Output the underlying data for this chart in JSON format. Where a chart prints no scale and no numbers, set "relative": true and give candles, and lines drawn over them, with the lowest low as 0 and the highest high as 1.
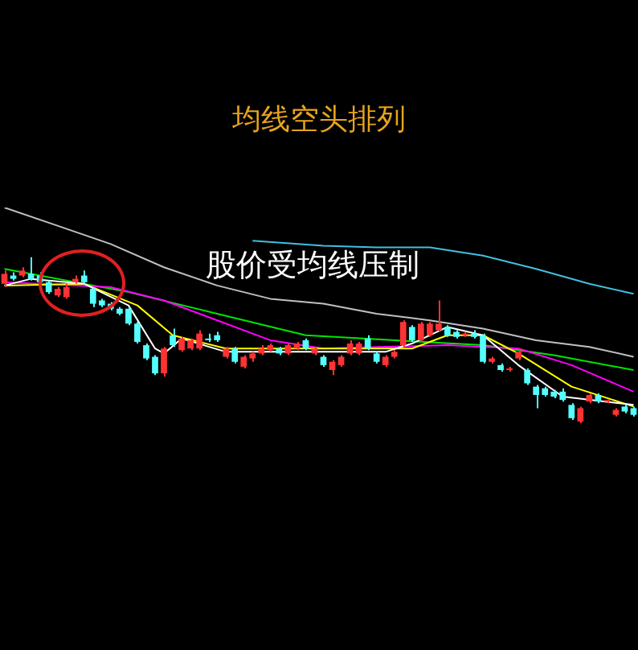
{
  "chart_data": {
    "type": "candlestick",
    "relative": true,
    "title": "均线空头排列",
    "annotations": [
      "股价受均线压制"
    ],
    "categories": [
      null,
      null,
      null,
      null,
      null,
      null,
      null,
      null,
      null,
      null,
      null,
      null,
      null,
      null,
      null,
      null,
      null,
      null,
      null,
      null,
      null,
      null,
      null,
      null,
      null,
      null,
      null,
      null,
      null,
      null,
      null,
      null,
      null,
      null,
      null,
      null,
      null,
      null,
      null,
      null,
      null,
      null,
      null,
      null,
      null,
      null,
      null,
      null,
      null,
      null,
      null,
      null,
      null,
      null,
      null,
      null,
      null,
      null,
      null,
      null,
      null,
      null,
      null,
      null,
      null,
      null,
      null,
      null,
      null,
      null,
      null,
      null
    ],
    "ohlc": [
      [
        0.84,
        0.92,
        0.82,
        0.9
      ],
      [
        0.89,
        0.91,
        0.86,
        0.87
      ],
      [
        0.89,
        0.94,
        0.88,
        0.92
      ],
      [
        0.9,
        1.0,
        0.86,
        0.87
      ],
      [
        0.89,
        0.91,
        0.84,
        0.85
      ],
      [
        0.85,
        0.86,
        0.78,
        0.79
      ],
      [
        0.77,
        0.82,
        0.76,
        0.81
      ],
      [
        0.76,
        0.84,
        0.75,
        0.82
      ],
      [
        0.85,
        0.89,
        0.84,
        0.87
      ],
      [
        0.89,
        0.92,
        0.84,
        0.85
      ],
      [
        0.81,
        0.82,
        0.7,
        0.72
      ],
      [
        0.74,
        0.75,
        0.7,
        0.71
      ],
      [
        0.72,
        0.73,
        0.68,
        0.69
      ],
      [
        0.69,
        0.7,
        0.65,
        0.66
      ],
      [
        0.69,
        0.7,
        0.59,
        0.6
      ],
      [
        0.6,
        0.61,
        0.48,
        0.49
      ],
      [
        0.47,
        0.48,
        0.38,
        0.39
      ],
      [
        0.4,
        0.41,
        0.29,
        0.3
      ],
      [
        0.3,
        0.46,
        0.28,
        0.45
      ],
      [
        0.53,
        0.57,
        0.46,
        0.47
      ],
      [
        0.44,
        0.52,
        0.43,
        0.51
      ],
      [
        0.45,
        0.51,
        0.44,
        0.5
      ],
      [
        0.45,
        0.56,
        0.44,
        0.54
      ],
      [
        0.51,
        0.54,
        0.49,
        0.5
      ],
      [
        0.53,
        0.55,
        0.49,
        0.5
      ],
      [
        0.4,
        0.46,
        0.39,
        0.45
      ],
      [
        0.45,
        0.46,
        0.36,
        0.37
      ],
      [
        0.34,
        0.41,
        0.33,
        0.4
      ],
      [
        0.39,
        0.43,
        0.37,
        0.42
      ],
      [
        0.42,
        0.47,
        0.41,
        0.45
      ],
      [
        0.44,
        0.48,
        0.43,
        0.47
      ],
      [
        0.45,
        0.46,
        0.41,
        0.42
      ],
      [
        0.42,
        0.48,
        0.41,
        0.47
      ],
      [
        0.45,
        0.49,
        0.44,
        0.48
      ],
      [
        0.5,
        0.51,
        0.44,
        0.45
      ],
      [
        0.42,
        0.46,
        0.41,
        0.45
      ],
      [
        0.4,
        0.41,
        0.34,
        0.35
      ],
      [
        0.32,
        0.38,
        0.29,
        0.37
      ],
      [
        0.35,
        0.41,
        0.34,
        0.4
      ],
      [
        0.42,
        0.5,
        0.41,
        0.48
      ],
      [
        0.42,
        0.49,
        0.41,
        0.48
      ],
      [
        0.51,
        0.53,
        0.44,
        0.45
      ],
      [
        0.42,
        0.43,
        0.36,
        0.37
      ],
      [
        0.35,
        0.41,
        0.34,
        0.4
      ],
      [
        0.4,
        0.44,
        0.39,
        0.43
      ],
      [
        0.47,
        0.62,
        0.46,
        0.61
      ],
      [
        0.58,
        0.59,
        0.49,
        0.5
      ],
      [
        0.5,
        0.61,
        0.49,
        0.6
      ],
      [
        0.53,
        0.61,
        0.52,
        0.6
      ],
      [
        0.56,
        0.74,
        0.55,
        0.6
      ],
      [
        0.58,
        0.59,
        0.52,
        0.53
      ],
      [
        0.55,
        0.56,
        0.51,
        0.52
      ],
      [
        0.53,
        0.55,
        0.52,
        0.54
      ],
      [
        0.54,
        0.56,
        0.51,
        0.52
      ],
      [
        0.53,
        0.54,
        0.36,
        0.37
      ],
      [
        0.37,
        0.4,
        0.36,
        0.39
      ],
      [
        0.35,
        0.36,
        0.31,
        0.32
      ],
      [
        0.32,
        0.34,
        0.31,
        0.33
      ],
      [
        0.39,
        0.45,
        0.38,
        0.43
      ],
      [
        0.32,
        0.33,
        0.23,
        0.24
      ],
      [
        0.22,
        0.23,
        0.09,
        0.17
      ],
      [
        0.21,
        0.22,
        0.16,
        0.17
      ],
      [
        0.19,
        0.2,
        0.15,
        0.16
      ],
      [
        0.19,
        0.21,
        0.13,
        0.14
      ],
      [
        0.11,
        0.12,
        0.02,
        0.03
      ],
      [
        0.01,
        0.1,
        0.0,
        0.09
      ],
      [
        0.13,
        0.18,
        0.12,
        0.17
      ],
      [
        0.17,
        0.18,
        0.12,
        0.13
      ],
      [
        0.13,
        0.14,
        0.12,
        0.13
      ],
      [
        0.05,
        0.09,
        0.04,
        0.08
      ],
      [
        0.1,
        0.11,
        0.06,
        0.07
      ],
      [
        0.09,
        0.1,
        0.04,
        0.05
      ]
    ],
    "colors": [
      "#ff3333",
      "#54ffff",
      "#ff3333",
      "#54ffff",
      "#54ffff",
      "#54ffff",
      "#ff3333",
      "#ff3333",
      "#ff3333",
      "#54ffff",
      "#54ffff",
      "#54ffff",
      "#54ffff",
      "#54ffff",
      "#54ffff",
      "#54ffff",
      "#54ffff",
      "#54ffff",
      "#ff3333",
      "#54ffff",
      "#ff3333",
      "#ff3333",
      "#ff3333",
      "#54ffff",
      "#54ffff",
      "#ff3333",
      "#54ffff",
      "#ff3333",
      "#ff3333",
      "#ff3333",
      "#ff3333",
      "#54ffff",
      "#ff3333",
      "#ff3333",
      "#54ffff",
      "#ff3333",
      "#54ffff",
      "#ff3333",
      "#ff3333",
      "#ff3333",
      "#ff3333",
      "#54ffff",
      "#54ffff",
      "#ff3333",
      "#ff3333",
      "#ff3333",
      "#54ffff",
      "#ff3333",
      "#ff3333",
      "#ff3333",
      "#54ffff",
      "#54ffff",
      "#ff3333",
      "#54ffff",
      "#54ffff",
      "#ff3333",
      "#54ffff",
      "#ff3333",
      "#ff3333",
      "#54ffff",
      "#54ffff",
      "#54ffff",
      "#54ffff",
      "#54ffff",
      "#54ffff",
      "#ff3333",
      "#ff3333",
      "#54ffff",
      "#ff3333",
      "#ff3333",
      "#54ffff",
      "#54ffff"
    ],
    "series": [
      {
        "type": "line",
        "color": "#ffffff",
        "values": [
          0.83,
          null,
          null,
          0.87,
          null,
          null,
          null,
          null,
          null,
          0.84,
          null,
          null,
          null,
          null,
          0.71,
          null,
          null,
          0.45,
          0.42,
          null,
          0.51,
          null,
          null,
          null,
          null,
          0.43,
          null,
          null,
          null,
          null,
          null,
          null,
          null,
          null,
          null,
          null,
          0.43,
          null,
          null,
          null,
          null,
          null,
          null,
          0.43,
          null,
          null,
          0.48,
          null,
          null,
          null,
          0.58,
          null,
          null,
          null,
          0.53,
          null,
          null,
          null,
          0.35,
          null,
          null,
          null,
          null,
          0.16,
          null,
          null,
          null,
          null,
          null,
          null,
          null,
          0.11
        ]
      },
      {
        "type": "line",
        "color": "#ffff00",
        "values": [
          0.83,
          null,
          null,
          null,
          null,
          null,
          null,
          null,
          null,
          0.84,
          null,
          null,
          null,
          null,
          null,
          0.71,
          null,
          null,
          null,
          0.53,
          null,
          null,
          null,
          null,
          null,
          0.45,
          null,
          null,
          null,
          null,
          null,
          null,
          null,
          null,
          null,
          null,
          0.45,
          null,
          null,
          null,
          null,
          null,
          null,
          null,
          null,
          null,
          0.45,
          null,
          null,
          null,
          0.53,
          null,
          null,
          null,
          0.53,
          null,
          null,
          null,
          0.42,
          null,
          null,
          null,
          null,
          null,
          0.22,
          null,
          null,
          null,
          null,
          null,
          null,
          0.1
        ]
      },
      {
        "type": "line",
        "color": "#ff00ff",
        "values": [
          0.85,
          null,
          null,
          null,
          null,
          null,
          null,
          null,
          null,
          null,
          null,
          null,
          0.82,
          null,
          null,
          null,
          null,
          null,
          0.74,
          null,
          null,
          null,
          null,
          null,
          null,
          null,
          null,
          null,
          null,
          null,
          0.5,
          null,
          null,
          null,
          null,
          null,
          0.45,
          null,
          null,
          null,
          null,
          null,
          null,
          null,
          null,
          null,
          null,
          null,
          null,
          null,
          0.47,
          null,
          null,
          null,
          null,
          null,
          null,
          null,
          0.45,
          null,
          null,
          null,
          null,
          null,
          0.35,
          null,
          null,
          null,
          null,
          null,
          null,
          0.19
        ]
      },
      {
        "type": "line",
        "color": "#00e600",
        "values": [
          0.93,
          null,
          null,
          null,
          null,
          null,
          null,
          null,
          null,
          null,
          null,
          null,
          null,
          null,
          0.79,
          null,
          null,
          null,
          null,
          null,
          null,
          null,
          null,
          null,
          0.66,
          null,
          null,
          null,
          null,
          null,
          null,
          null,
          null,
          null,
          0.53,
          null,
          null,
          null,
          null,
          null,
          null,
          null,
          null,
          null,
          null,
          null,
          null,
          null,
          null,
          null,
          null,
          null,
          null,
          null,
          0.47,
          null,
          null,
          null,
          null,
          null,
          null,
          null,
          0.41,
          null,
          null,
          null,
          null,
          null,
          null,
          null,
          null,
          0.32
        ]
      },
      {
        "type": "line",
        "color": "#c0c0c0",
        "values": [
          1.3,
          null,
          null,
          null,
          null,
          null,
          1.19,
          null,
          null,
          null,
          null,
          null,
          1.08,
          null,
          null,
          null,
          null,
          null,
          0.94,
          null,
          null,
          null,
          null,
          null,
          0.83,
          null,
          null,
          null,
          null,
          null,
          0.75,
          null,
          null,
          null,
          null,
          null,
          0.72,
          null,
          null,
          null,
          null,
          null,
          0.66,
          null,
          null,
          null,
          null,
          null,
          0.62,
          null,
          null,
          null,
          null,
          null,
          0.57,
          null,
          null,
          null,
          null,
          null,
          0.5,
          null,
          null,
          null,
          null,
          null,
          0.46,
          null,
          null,
          null,
          null,
          0.4
        ]
      },
      {
        "type": "line",
        "color": "#40c0e0",
        "values": [
          null,
          null,
          null,
          null,
          null,
          null,
          null,
          null,
          null,
          null,
          null,
          null,
          null,
          null,
          null,
          null,
          null,
          null,
          null,
          null,
          null,
          null,
          null,
          null,
          null,
          null,
          null,
          null,
          1.1,
          null,
          null,
          null,
          null,
          null,
          null,
          null,
          1.07,
          null,
          null,
          null,
          null,
          null,
          1.06,
          null,
          null,
          null,
          null,
          null,
          1.06,
          null,
          null,
          null,
          null,
          null,
          1.01,
          null,
          null,
          null,
          null,
          null,
          0.93,
          null,
          null,
          null,
          null,
          null,
          0.84,
          null,
          null,
          null,
          null,
          0.78
        ]
      }
    ]
  }
}
